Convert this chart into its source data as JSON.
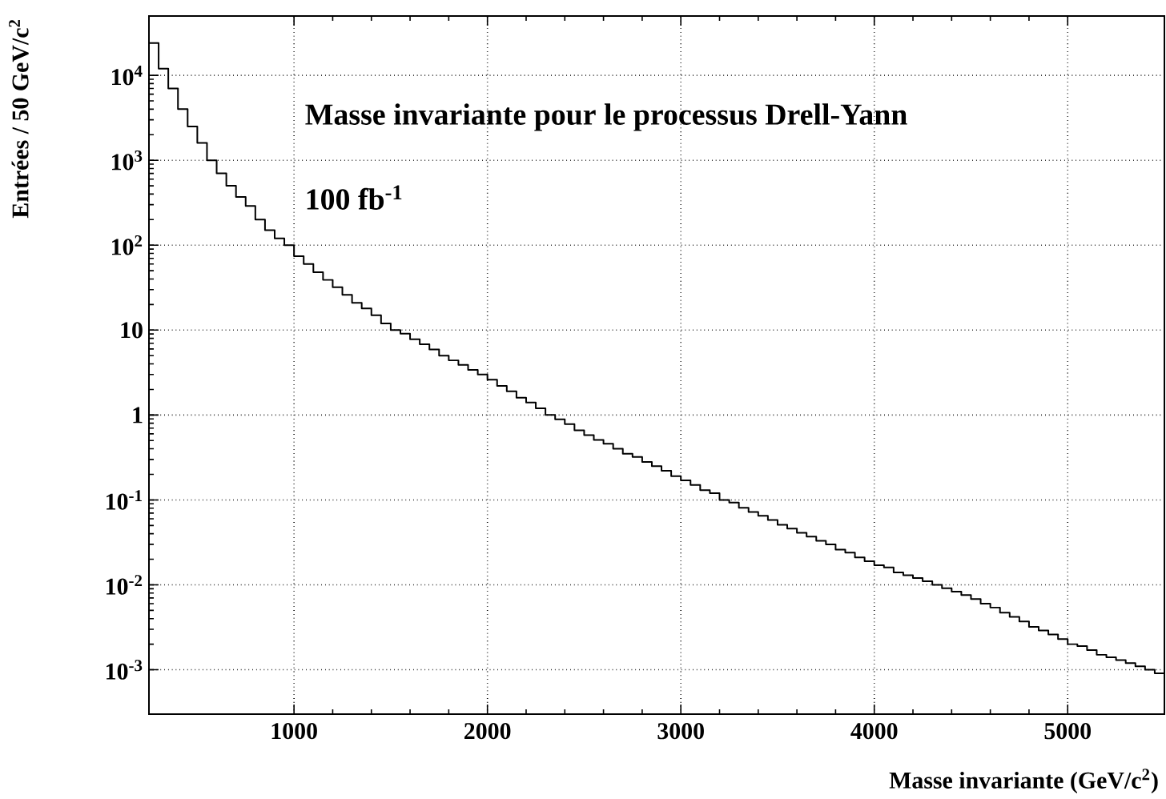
{
  "chart_data": {
    "type": "histogram",
    "title": "Masse invariante pour le processus Drell-Yann",
    "annotations": [
      "100 fb$^{-1}$"
    ],
    "xlabel": "Masse invariante (GeV/c$^{2}$)",
    "ylabel": "Entrées / 50 GeV/c$^{2}$",
    "bins": [
      250,
      300,
      350,
      400,
      450,
      500,
      550,
      600,
      650,
      700,
      750,
      800,
      850,
      900,
      950,
      1000,
      1050,
      1100,
      1150,
      1200,
      1250,
      1300,
      1350,
      1400,
      1450,
      1500,
      1550,
      1600,
      1650,
      1700,
      1750,
      1800,
      1850,
      1900,
      1950,
      2000,
      2050,
      2100,
      2150,
      2200,
      2250,
      2300,
      2350,
      2400,
      2450,
      2500,
      2550,
      2600,
      2650,
      2700,
      2750,
      2800,
      2850,
      2900,
      2950,
      3000,
      3050,
      3100,
      3150,
      3200,
      3250,
      3300,
      3350,
      3400,
      3450,
      3500,
      3550,
      3600,
      3650,
      3700,
      3750,
      3800,
      3850,
      3900,
      3950,
      4000,
      4050,
      4100,
      4150,
      4200,
      4250,
      4300,
      4350,
      4400,
      4450,
      4500,
      4550,
      4600,
      4650,
      4700,
      4750,
      4800,
      4850,
      4900,
      4950,
      5000,
      5050,
      5100,
      5150,
      5200,
      5250,
      5300,
      5350,
      5400,
      5450,
      5500
    ],
    "values": [
      24000,
      12000,
      7000,
      4000,
      2500,
      1600,
      1000,
      700,
      500,
      370,
      290,
      200,
      150,
      120,
      100,
      74,
      60,
      48,
      39,
      32,
      26,
      21,
      18,
      15,
      12,
      10,
      9.1,
      7.8,
      6.8,
      5.9,
      5.0,
      4.4,
      3.9,
      3.4,
      3.0,
      2.6,
      2.2,
      1.9,
      1.6,
      1.4,
      1.2,
      1.0,
      0.89,
      0.78,
      0.66,
      0.58,
      0.51,
      0.46,
      0.4,
      0.35,
      0.32,
      0.28,
      0.25,
      0.22,
      0.19,
      0.17,
      0.15,
      0.13,
      0.12,
      0.1,
      0.093,
      0.081,
      0.072,
      0.065,
      0.058,
      0.051,
      0.046,
      0.041,
      0.037,
      0.033,
      0.03,
      0.026,
      0.024,
      0.021,
      0.019,
      0.017,
      0.016,
      0.014,
      0.013,
      0.012,
      0.011,
      0.01,
      0.0091,
      0.0083,
      0.0076,
      0.0068,
      0.006,
      0.0054,
      0.0047,
      0.0042,
      0.0037,
      0.0032,
      0.0029,
      0.0026,
      0.0023,
      0.002,
      0.0019,
      0.0017,
      0.0015,
      0.0014,
      0.0013,
      0.0012,
      0.0011,
      0.001,
      0.00091
    ],
    "color": "#000000",
    "log": "y",
    "grid": true,
    "xlim": [
      250,
      5500
    ],
    "ylim": [
      0.0003,
      50000
    ],
    "xticks": [
      1000,
      2000,
      3000,
      4000,
      5000
    ],
    "yticks": [
      {
        "value": 0.001,
        "label": "10$^{-3}$"
      },
      {
        "value": 0.01,
        "label": "10$^{-2}$"
      },
      {
        "value": 0.1,
        "label": "10$^{-1}$"
      },
      1,
      10,
      {
        "value": 100,
        "label": "10$^{2}$"
      },
      {
        "value": 1000,
        "label": "10$^{3}$"
      },
      {
        "value": 10000,
        "label": "10$^{4}$"
      }
    ]
  }
}
